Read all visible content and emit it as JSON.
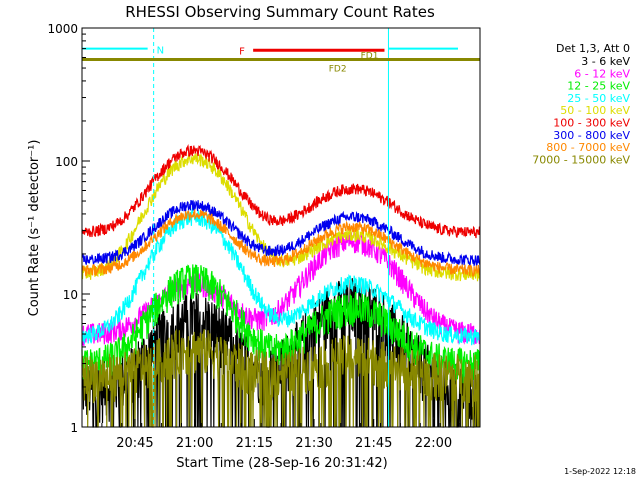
{
  "chart_data": {
    "type": "line",
    "title": "RHESSI Observing Summary Count Rates",
    "xlabel": "Start Time (28-Sep-16 20:31:42)",
    "ylabel": "Count Rate (s⁻¹ detector⁻¹)",
    "yscale": "log",
    "ylim": [
      1,
      1000
    ],
    "xlim_minutes": [
      0,
      100
    ],
    "x_tick_labels": [
      "20:45",
      "21:00",
      "21:15",
      "21:30",
      "21:45",
      "22:00"
    ],
    "x_tick_minutes": [
      13.3,
      28.3,
      43.3,
      58.3,
      73.3,
      88.3
    ],
    "y_tick_labels": [
      "1",
      "10",
      "100",
      "1000"
    ],
    "y_tick_values": [
      1,
      10,
      100,
      1000
    ],
    "legend_header": "Det 1,3, Att 0",
    "timestamp": "1-Sep-2022 12:18",
    "flags": {
      "night_label": "N",
      "flare_label": "F",
      "fd1_label": "FD1",
      "fd2_label": "FD2",
      "night_color": "#00ffff",
      "flare_color": "#ee0000",
      "fd_color": "#888800",
      "night_start_min": 18,
      "night_end_min": 77,
      "flare_start_min": 43,
      "flare_end_min": 76
    },
    "series": [
      {
        "name": "3 - 6 keV",
        "color": "#000000",
        "base": 2.0,
        "peak1": 7,
        "peak2": 9,
        "noise": 0.5
      },
      {
        "name": "6 - 12 keV",
        "color": "#ff00ff",
        "base": 5.0,
        "peak1": 12,
        "peak2": 25,
        "noise": 0.2
      },
      {
        "name": "12 - 25 keV",
        "color": "#00ee00",
        "base": 3.0,
        "peak1": 13,
        "peak2": 8,
        "noise": 0.3
      },
      {
        "name": "25 - 50 keV",
        "color": "#00ffff",
        "base": 4.8,
        "peak1": 38,
        "peak2": 12,
        "noise": 0.15
      },
      {
        "name": "50 - 100 keV",
        "color": "#dddd00",
        "base": 14,
        "peak1": 105,
        "peak2": 28,
        "noise": 0.12
      },
      {
        "name": "100 - 300 keV",
        "color": "#ee0000",
        "base": 29,
        "peak1": 120,
        "peak2": 62,
        "noise": 0.1
      },
      {
        "name": "300 - 800 keV",
        "color": "#0000ee",
        "base": 18,
        "peak1": 47,
        "peak2": 38,
        "noise": 0.1
      },
      {
        "name": "800 - 7000 keV",
        "color": "#ff8800",
        "base": 15,
        "peak1": 40,
        "peak2": 32,
        "noise": 0.1
      },
      {
        "name": "7000 - 15000 keV",
        "color": "#888800",
        "base": 2.5,
        "peak1": 4,
        "peak2": 3.5,
        "noise": 0.4
      }
    ],
    "events_minutes": {
      "peak1_center": 28,
      "peak1_width": 8,
      "peak2_center": 68,
      "peak2_width": 9
    }
  }
}
